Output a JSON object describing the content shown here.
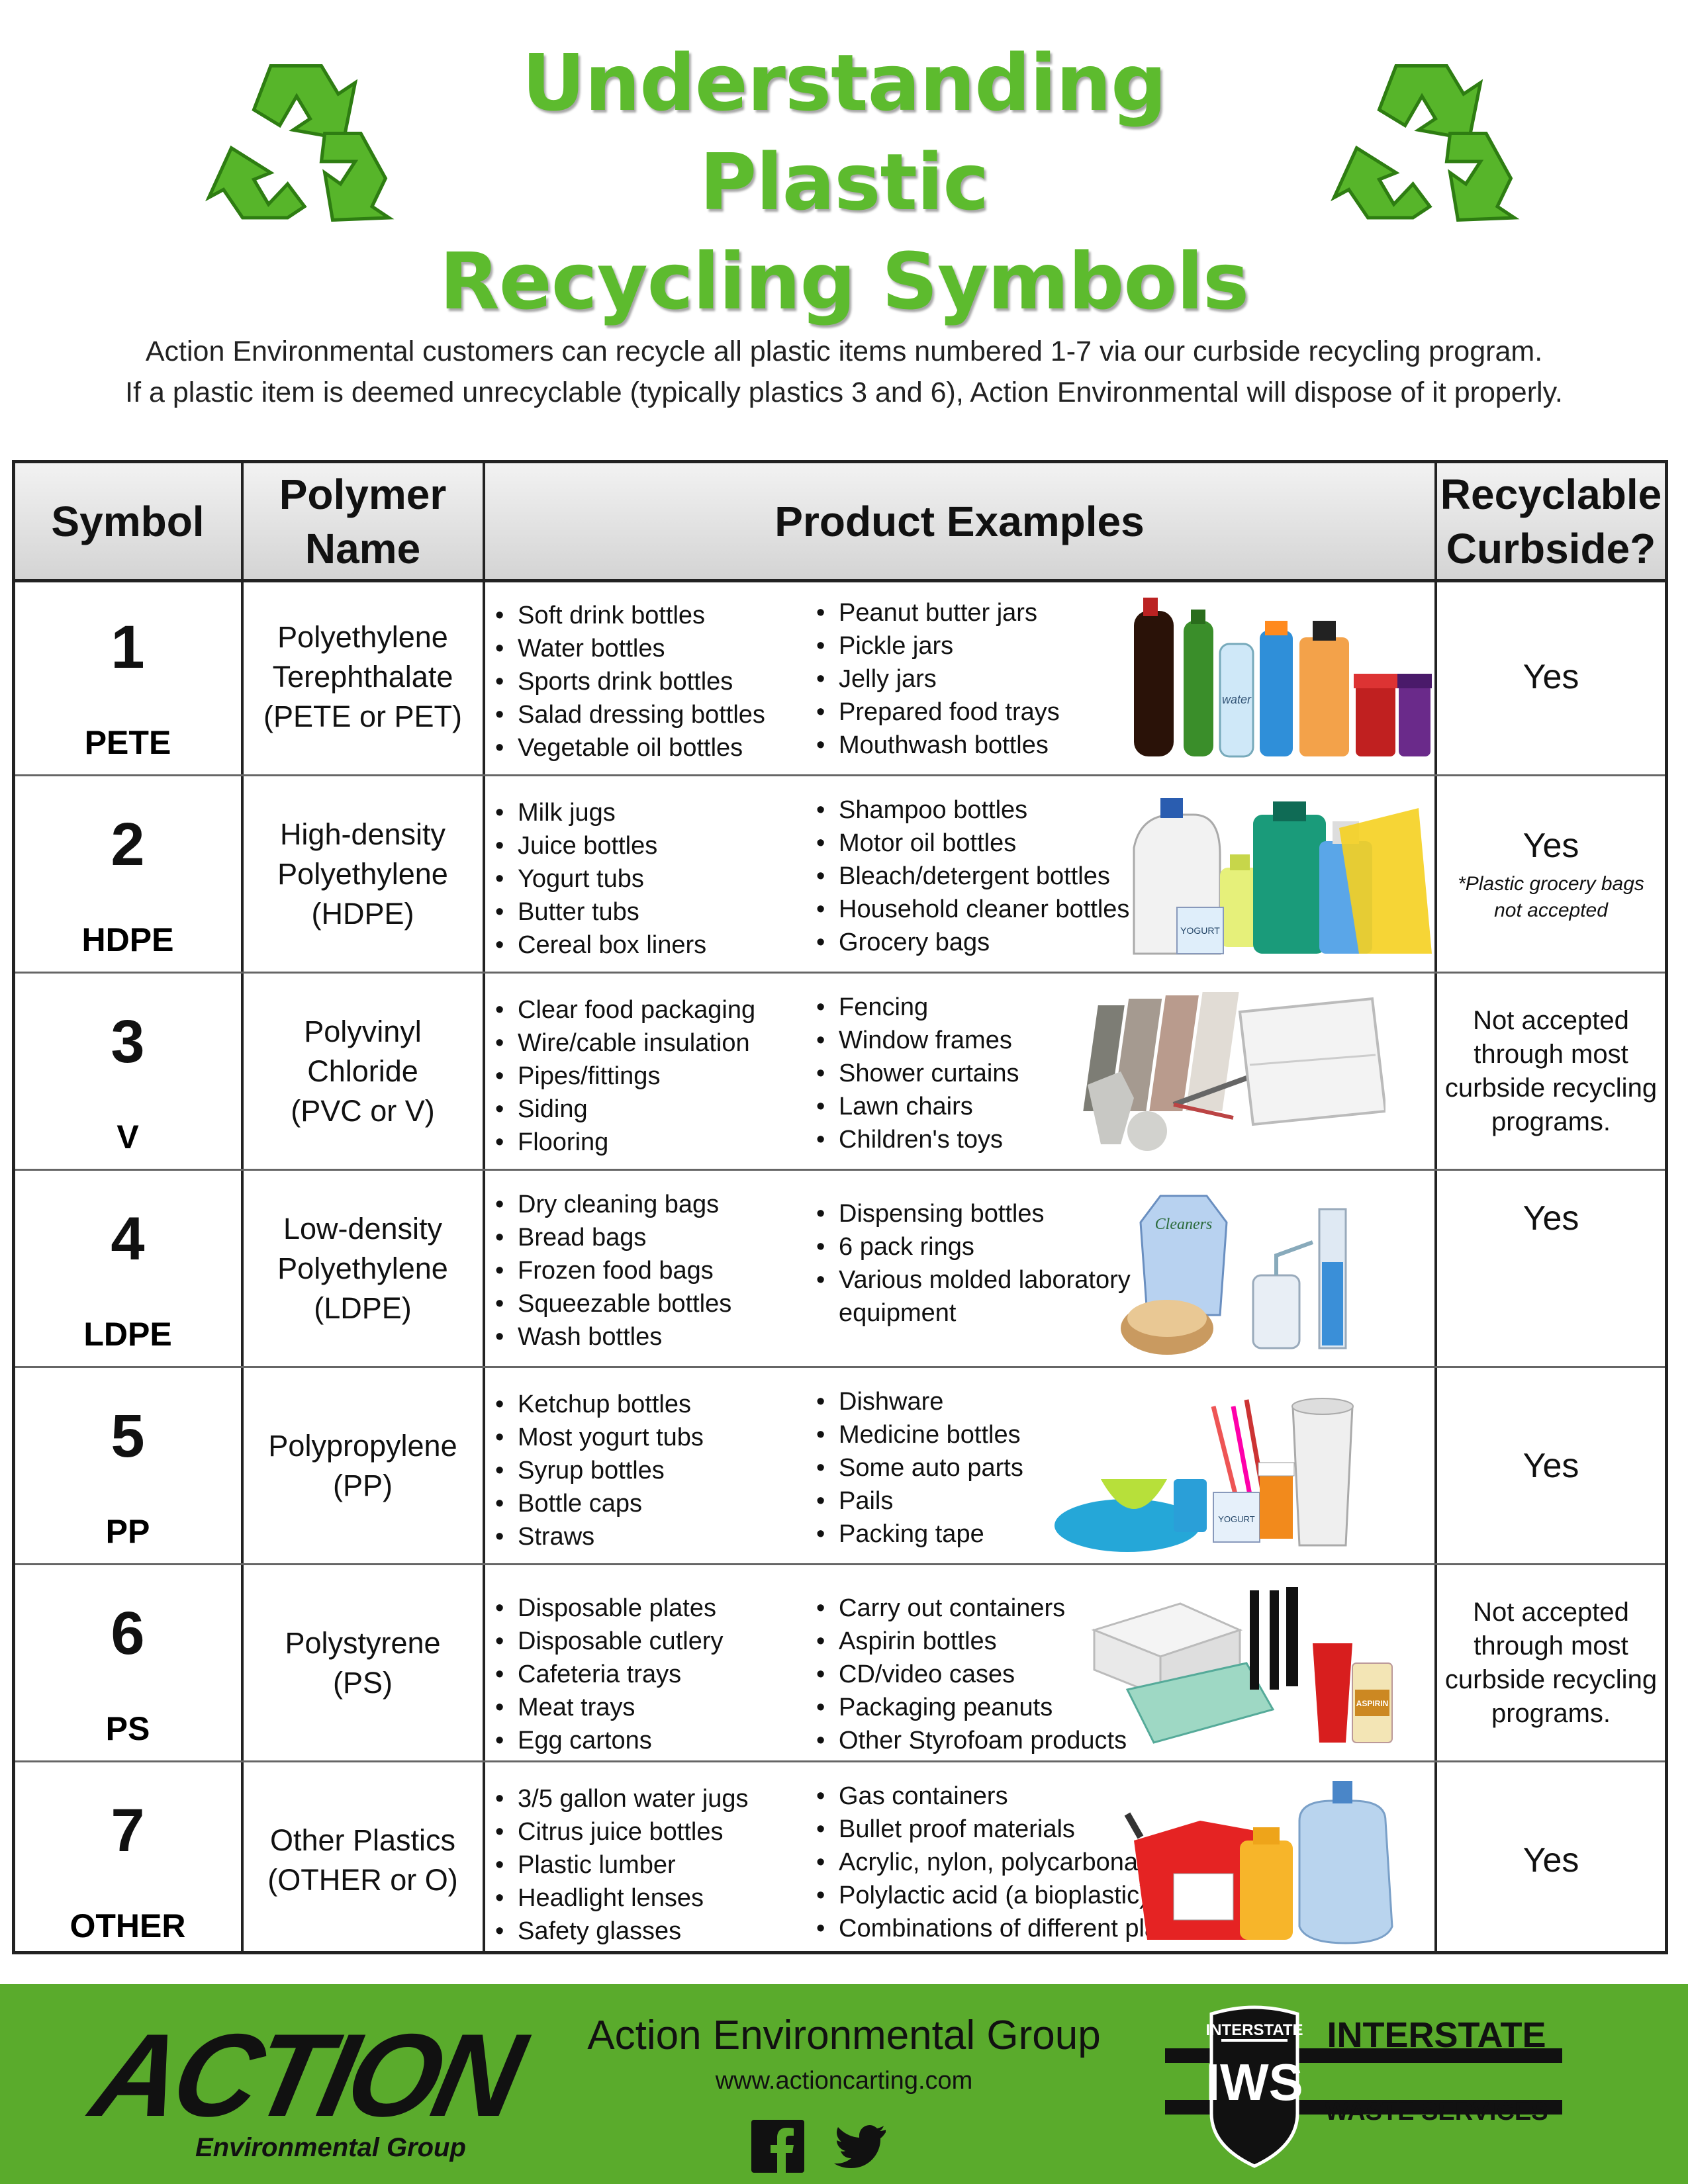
{
  "header": {
    "title_line1": "Understanding Plastic",
    "title_line2": "Recycling Symbols",
    "intro_line1": "Action Environmental customers can recycle all plastic items numbered 1-7 via our curbside recycling program.",
    "intro_line2": "If a plastic item is deemed unrecyclable (typically plastics 3 and 6), Action Environmental will dispose of it properly."
  },
  "table": {
    "headers": {
      "symbol": "Symbol",
      "polymer_line1": "Polymer",
      "polymer_line2": "Name",
      "examples": "Product Examples",
      "recyclable_line1": "Recyclable",
      "recyclable_line2": "Curbside?"
    },
    "rows": [
      {
        "number": "1",
        "code": "PETE",
        "polymer": [
          "Polyethylene",
          "Terephthalate",
          "(PETE or PET)"
        ],
        "col1": [
          "Soft drink bottles",
          "Water bottles",
          "Sports drink bottles",
          "Salad dressing bottles",
          "Vegetable oil bottles"
        ],
        "col2": [
          "Peanut butter jars",
          "Pickle jars",
          "Jelly jars",
          "Prepared food trays",
          "Mouthwash bottles"
        ],
        "recyclable": "Yes",
        "note": [
          "",
          ""
        ],
        "pic_text": "water"
      },
      {
        "number": "2",
        "code": "HDPE",
        "polymer": [
          "High-density",
          "Polyethylene",
          "(HDPE)"
        ],
        "col1": [
          "Milk jugs",
          "Juice bottles",
          "Yogurt tubs",
          "Butter tubs",
          "Cereal box liners"
        ],
        "col2": [
          "Shampoo bottles",
          "Motor oil bottles",
          "Bleach/detergent bottles",
          "Household cleaner bottles",
          "Grocery bags"
        ],
        "recyclable": "Yes",
        "note": [
          "*Plastic grocery bags",
          "not accepted"
        ],
        "pic_text": "YOGURT"
      },
      {
        "number": "3",
        "code": "V",
        "polymer": [
          "Polyvinyl",
          "Chloride",
          "(PVC or V)"
        ],
        "col1": [
          "Clear food packaging",
          "Wire/cable insulation",
          "Pipes/fittings",
          "Siding",
          "Flooring"
        ],
        "col2": [
          "Fencing",
          "Window frames",
          "Shower curtains",
          "Lawn chairs",
          "Children's toys"
        ],
        "recyclable": "",
        "not_accepted": [
          "Not accepted",
          "through most",
          "curbside recycling",
          "programs."
        ],
        "pic_text": ""
      },
      {
        "number": "4",
        "code": "LDPE",
        "polymer": [
          "Low-density",
          "Polyethylene",
          "(LDPE)"
        ],
        "col1": [
          "Dry cleaning bags",
          "Bread bags",
          "Frozen food bags",
          "Squeezable bottles",
          "Wash bottles"
        ],
        "col2": [
          "Dispensing bottles",
          "6 pack rings",
          "Various molded laboratory",
          "equipment"
        ],
        "recyclable": "Yes",
        "note": [
          "",
          ""
        ],
        "pic_text": "Cleaners"
      },
      {
        "number": "5",
        "code": "PP",
        "polymer": [
          "Polypropylene",
          "(PP)",
          ""
        ],
        "col1": [
          "Ketchup bottles",
          "Most yogurt tubs",
          "Syrup bottles",
          "Bottle caps",
          "Straws"
        ],
        "col2": [
          "Dishware",
          "Medicine bottles",
          "Some auto parts",
          "Pails",
          "Packing tape"
        ],
        "recyclable": "Yes",
        "note": [
          "",
          ""
        ],
        "pic_text": "YOGURT"
      },
      {
        "number": "6",
        "code": "PS",
        "polymer": [
          "Polystyrene",
          "(PS)",
          ""
        ],
        "col1": [
          "Disposable plates",
          "Disposable cutlery",
          "Cafeteria trays",
          "Meat trays",
          "Egg cartons"
        ],
        "col2": [
          "Carry out containers",
          "Aspirin bottles",
          "CD/video cases",
          "Packaging peanuts",
          "Other Styrofoam products"
        ],
        "recyclable": "",
        "not_accepted": [
          "Not accepted",
          "through most",
          "curbside recycling",
          "programs."
        ],
        "pic_text": "ASPIRIN"
      },
      {
        "number": "7",
        "code": "OTHER",
        "polymer": [
          "Other Plastics",
          "(OTHER or O)",
          ""
        ],
        "col1": [
          "3/5 gallon water jugs",
          "Citrus juice bottles",
          "Plastic lumber",
          "Headlight lenses",
          "Safety glasses"
        ],
        "col2": [
          "Gas containers",
          "Bullet proof materials",
          "Acrylic, nylon, polycarbonate",
          "Polylactic acid (a bioplastic)",
          "Combinations of different plastics"
        ],
        "recyclable": "Yes",
        "note": [
          "",
          ""
        ],
        "pic_text": ""
      }
    ]
  },
  "footer": {
    "action_logo_word": "ACTION",
    "action_logo_sub": "Environmental Group",
    "company": "Action Environmental Group",
    "url": "www.actioncarting.com",
    "iws_top": "INTERSTATE",
    "iws_mid": "IWS",
    "iws_name_line1": "INTERSTATE",
    "iws_name_line2": "WASTE SERVICES",
    "icons": [
      "facebook-icon",
      "twitter-icon"
    ]
  },
  "colors": {
    "title_green": "#5dbb2e",
    "footer_green": "#5aab2c",
    "header_gray": "#d4d4d4"
  }
}
